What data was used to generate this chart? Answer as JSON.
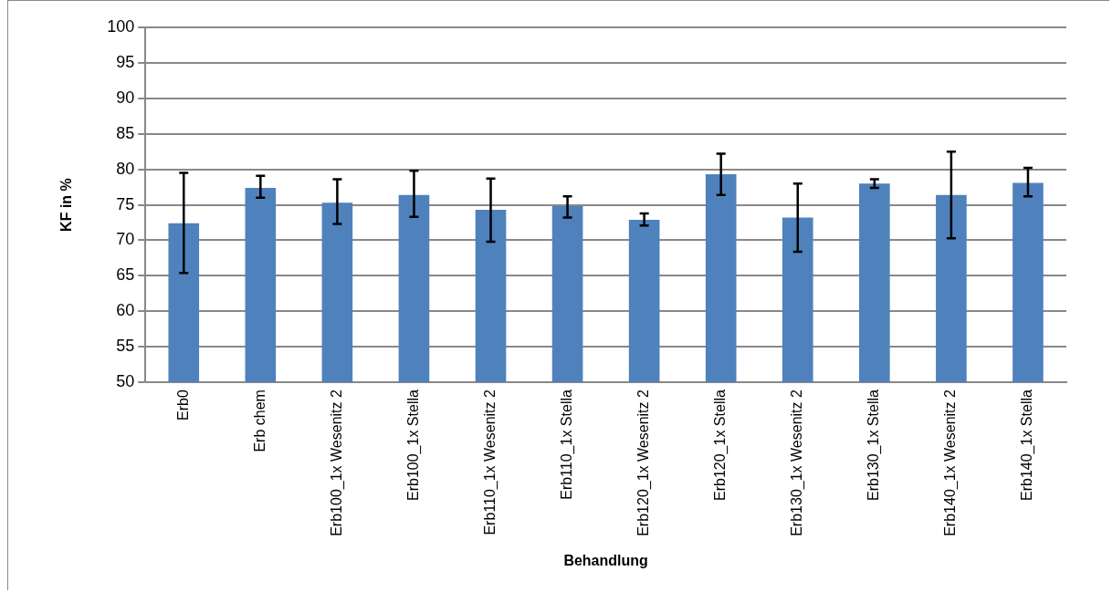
{
  "chart_data": {
    "type": "bar",
    "xlabel": "Behandlung",
    "ylabel": "KF in %",
    "categories": [
      "Erb0",
      "Erb chem",
      "Erb100_1x Wesenitz 2",
      "Erb100_1x Stella",
      "Erb110_1x Wesenitz 2",
      "Erb110_1x Stella",
      "Erb120_1x Wesenitz 2",
      "Erb120_1x Stella",
      "Erb130_1x Wesenitz 2",
      "Erb130_1x Stella",
      "Erb140_1x Wesenitz 2",
      "Erb140_1x Stella"
    ],
    "values": [
      72.4,
      77.4,
      75.3,
      76.4,
      74.3,
      74.8,
      72.9,
      79.3,
      73.2,
      78.0,
      76.4,
      78.1
    ],
    "errors": [
      [
        65.4,
        79.5
      ],
      [
        76.0,
        79.1
      ],
      [
        72.3,
        78.6
      ],
      [
        73.3,
        79.8
      ],
      [
        69.8,
        78.7
      ],
      [
        73.2,
        76.2
      ],
      [
        72.1,
        73.8
      ],
      [
        76.4,
        82.2
      ],
      [
        68.4,
        78.0
      ],
      [
        77.4,
        78.6
      ],
      [
        70.3,
        82.5
      ],
      [
        76.2,
        80.2
      ]
    ],
    "color": "#4f81bd",
    "ylim": [
      50,
      100
    ],
    "yticks": [
      50,
      55,
      60,
      65,
      70,
      75,
      80,
      85,
      90,
      95,
      100
    ],
    "grid": "y",
    "legend": false
  }
}
